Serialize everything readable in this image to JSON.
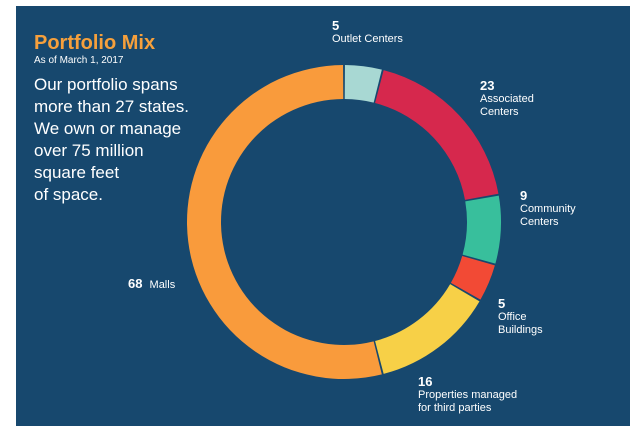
{
  "header": {
    "title": "Portfolio Mix",
    "subtitle": "As of March 1, 2017",
    "description_lines": [
      "Our portfolio spans",
      "more than 27 states.",
      "We own or manage",
      "over 75 million",
      "square feet",
      "of space."
    ]
  },
  "colors": {
    "background": "#17486e",
    "accent": "#f6a03c"
  },
  "chart_data": {
    "type": "pie",
    "donut": true,
    "title": "Portfolio Mix",
    "subtitle": "As of March 1, 2017",
    "slices": [
      {
        "value": "5",
        "label_lines": [
          "Outlet Centers"
        ],
        "count": 5,
        "color": "#a8d8d3"
      },
      {
        "value": "23",
        "label_lines": [
          "Associated",
          "Centers"
        ],
        "count": 23,
        "color": "#d6284d"
      },
      {
        "value": "9",
        "label_lines": [
          "Community",
          "Centers"
        ],
        "count": 9,
        "color": "#38bf9c"
      },
      {
        "value": "5",
        "label_lines": [
          "Office",
          "Buildings"
        ],
        "count": 5,
        "color": "#f24a35"
      },
      {
        "value": "16",
        "label_lines": [
          "Properties managed",
          "for third parties"
        ],
        "count": 16,
        "color": "#f7d047"
      },
      {
        "value": "68",
        "label_lines": [
          "Malls"
        ],
        "count": 68,
        "color": "#f99b3c"
      }
    ]
  }
}
